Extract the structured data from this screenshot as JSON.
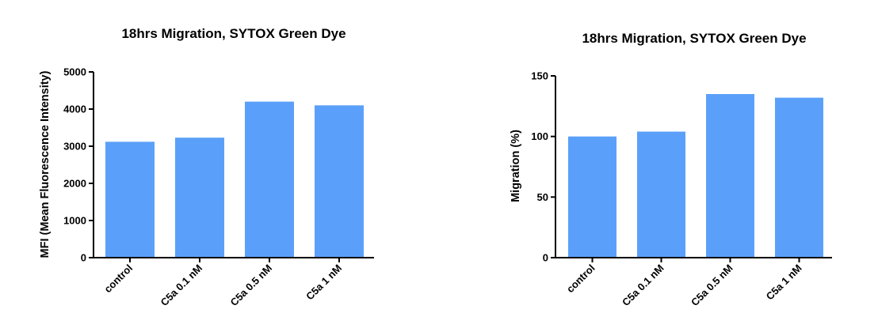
{
  "chart_data": [
    {
      "type": "bar",
      "title": "18hrs Migration, SYTOX Green Dye",
      "xlabel": "",
      "ylabel": "MFI (Mean Fluorescence Intensity)",
      "categories": [
        "control",
        "C5a 0.1 nM",
        "C5a 0.5 nM",
        "C5a 1 nM"
      ],
      "values": [
        3120,
        3230,
        4200,
        4100
      ],
      "ylim": [
        0,
        5000
      ],
      "yticks": [
        "0",
        "1000",
        "2000",
        "3000",
        "4000",
        "5000"
      ],
      "grid": false,
      "bar_color": "#5aa0fa"
    },
    {
      "type": "bar",
      "title": "18hrs Migration, SYTOX Green Dye",
      "xlabel": "",
      "ylabel": "Migration (%)",
      "categories": [
        "control",
        "C5a 0.1 nM",
        "C5a 0.5 nM",
        "C5a 1 nM"
      ],
      "values": [
        100,
        104,
        135,
        132
      ],
      "ylim": [
        0,
        150
      ],
      "yticks": [
        "0",
        "50",
        "100",
        "150"
      ],
      "grid": false,
      "bar_color": "#5aa0fa"
    }
  ]
}
